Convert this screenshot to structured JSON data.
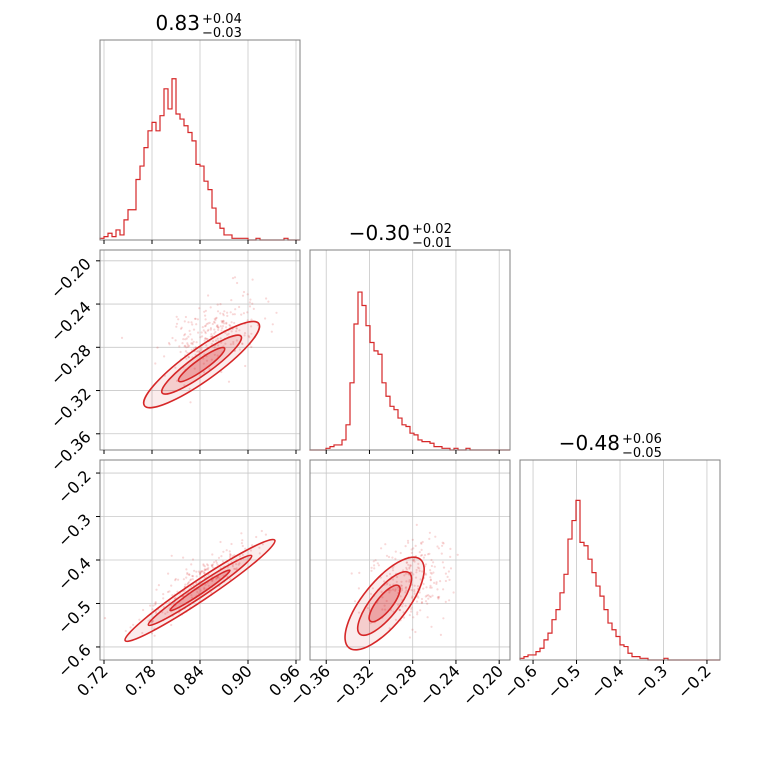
{
  "chart_data": {
    "type": "corner",
    "color": "#d62728",
    "grid": true,
    "parameters": [
      {
        "title": "0.83",
        "plus": "+0.04",
        "minus": "−0.03",
        "range": [
          0.715,
          0.965
        ]
      },
      {
        "title": "−0.30",
        "plus": "+0.02",
        "minus": "−0.01",
        "range": [
          -0.375,
          -0.19
        ]
      },
      {
        "title": "−0.48",
        "plus": "+0.06",
        "minus": "−0.05",
        "range": [
          -0.63,
          -0.17
        ]
      }
    ],
    "ticks": {
      "p0": {
        "values": [
          0.72,
          0.78,
          0.84,
          0.9,
          0.96
        ],
        "labels": [
          "0.72",
          "0.78",
          "0.84",
          "0.90",
          "0.96"
        ]
      },
      "p1_y": {
        "values": [
          -0.2,
          -0.24,
          -0.28,
          -0.32,
          -0.36
        ],
        "labels": [
          "−0.20",
          "−0.24",
          "−0.28",
          "−0.32",
          "−0.36"
        ]
      },
      "p1_x": {
        "values": [
          -0.36,
          -0.32,
          -0.28,
          -0.24,
          -0.2
        ],
        "labels": [
          "−0.36",
          "−0.32",
          "−0.28",
          "−0.24",
          "−0.20"
        ]
      },
      "p2_y": {
        "values": [
          -0.2,
          -0.3,
          -0.4,
          -0.5,
          -0.6
        ],
        "labels": [
          "−0.2",
          "−0.3",
          "−0.4",
          "−0.5",
          "−0.6"
        ]
      },
      "p2_x": {
        "values": [
          -0.6,
          -0.5,
          -0.4,
          -0.3,
          -0.2
        ],
        "labels": [
          "−0.6",
          "−0.5",
          "−0.4",
          "−0.3",
          "−0.2"
        ]
      }
    },
    "histograms": [
      {
        "param": 0,
        "bin_start": 0.715,
        "bin_width": 0.005,
        "counts": [
          0.01,
          0.02,
          0.04,
          0.02,
          0.06,
          0.03,
          0.12,
          0.18,
          0.18,
          0.36,
          0.44,
          0.55,
          0.65,
          0.7,
          0.65,
          0.74,
          0.9,
          0.78,
          0.96,
          0.75,
          0.72,
          0.68,
          0.64,
          0.59,
          0.45,
          0.44,
          0.35,
          0.3,
          0.19,
          0.1,
          0.07,
          0.03,
          0.03,
          0.01,
          0.01,
          0.01,
          0.01,
          0.0,
          0.0,
          0.01,
          0.0,
          0.0,
          0.0,
          0.0,
          0.0,
          0.0,
          0.01,
          0.0,
          0.0,
          0.0
        ]
      },
      {
        "param": 1,
        "bin_start": -0.375,
        "bin_width": 0.0037,
        "counts": [
          0.0,
          0.0,
          0.0,
          0.0,
          0.01,
          0.02,
          0.03,
          0.03,
          0.06,
          0.15,
          0.4,
          0.75,
          0.94,
          0.86,
          0.74,
          0.64,
          0.59,
          0.57,
          0.4,
          0.32,
          0.26,
          0.24,
          0.19,
          0.15,
          0.14,
          0.1,
          0.09,
          0.06,
          0.05,
          0.05,
          0.04,
          0.02,
          0.02,
          0.01,
          0.01,
          0.0,
          0.01,
          0.0,
          0.0,
          0.01,
          0.0,
          0.0,
          0.0,
          0.0,
          0.0,
          0.0,
          0.0,
          0.0,
          0.0,
          0.0
        ]
      },
      {
        "param": 2,
        "bin_start": -0.63,
        "bin_width": 0.0092,
        "counts": [
          0.01,
          0.02,
          0.03,
          0.03,
          0.05,
          0.07,
          0.12,
          0.16,
          0.24,
          0.3,
          0.4,
          0.51,
          0.72,
          0.83,
          0.95,
          0.7,
          0.68,
          0.6,
          0.52,
          0.44,
          0.38,
          0.3,
          0.22,
          0.18,
          0.14,
          0.09,
          0.08,
          0.04,
          0.02,
          0.02,
          0.01,
          0.01,
          0.0,
          0.0,
          0.0,
          0.0,
          0.01,
          0.0,
          0.0,
          0.0,
          0.0,
          0.0,
          0.0,
          0.0,
          0.0,
          0.0,
          0.0,
          0.0,
          0.0,
          0.0
        ]
      }
    ],
    "joint_2d": [
      {
        "x_param": 0,
        "y_param": 1,
        "center": [
          0.842,
          -0.296
        ],
        "spine_start": [
          0.785,
          -0.306
        ],
        "spine_end": [
          0.915,
          -0.237
        ],
        "sigma_along": 0.022,
        "sigma_across": 0.011
      },
      {
        "x_param": 0,
        "y_param": 2,
        "center": [
          0.84,
          -0.47
        ],
        "spine_start": [
          0.745,
          -0.565
        ],
        "spine_end": [
          0.915,
          -0.355
        ],
        "sigma_along": 0.025,
        "sigma_across": 0.01
      },
      {
        "x_param": 1,
        "y_param": 2,
        "center": [
          -0.306,
          -0.5
        ],
        "spine_start": [
          -0.315,
          -0.555
        ],
        "spine_end": [
          -0.255,
          -0.37
        ],
        "sigma_along": 0.014,
        "sigma_across": 0.016
      }
    ]
  }
}
